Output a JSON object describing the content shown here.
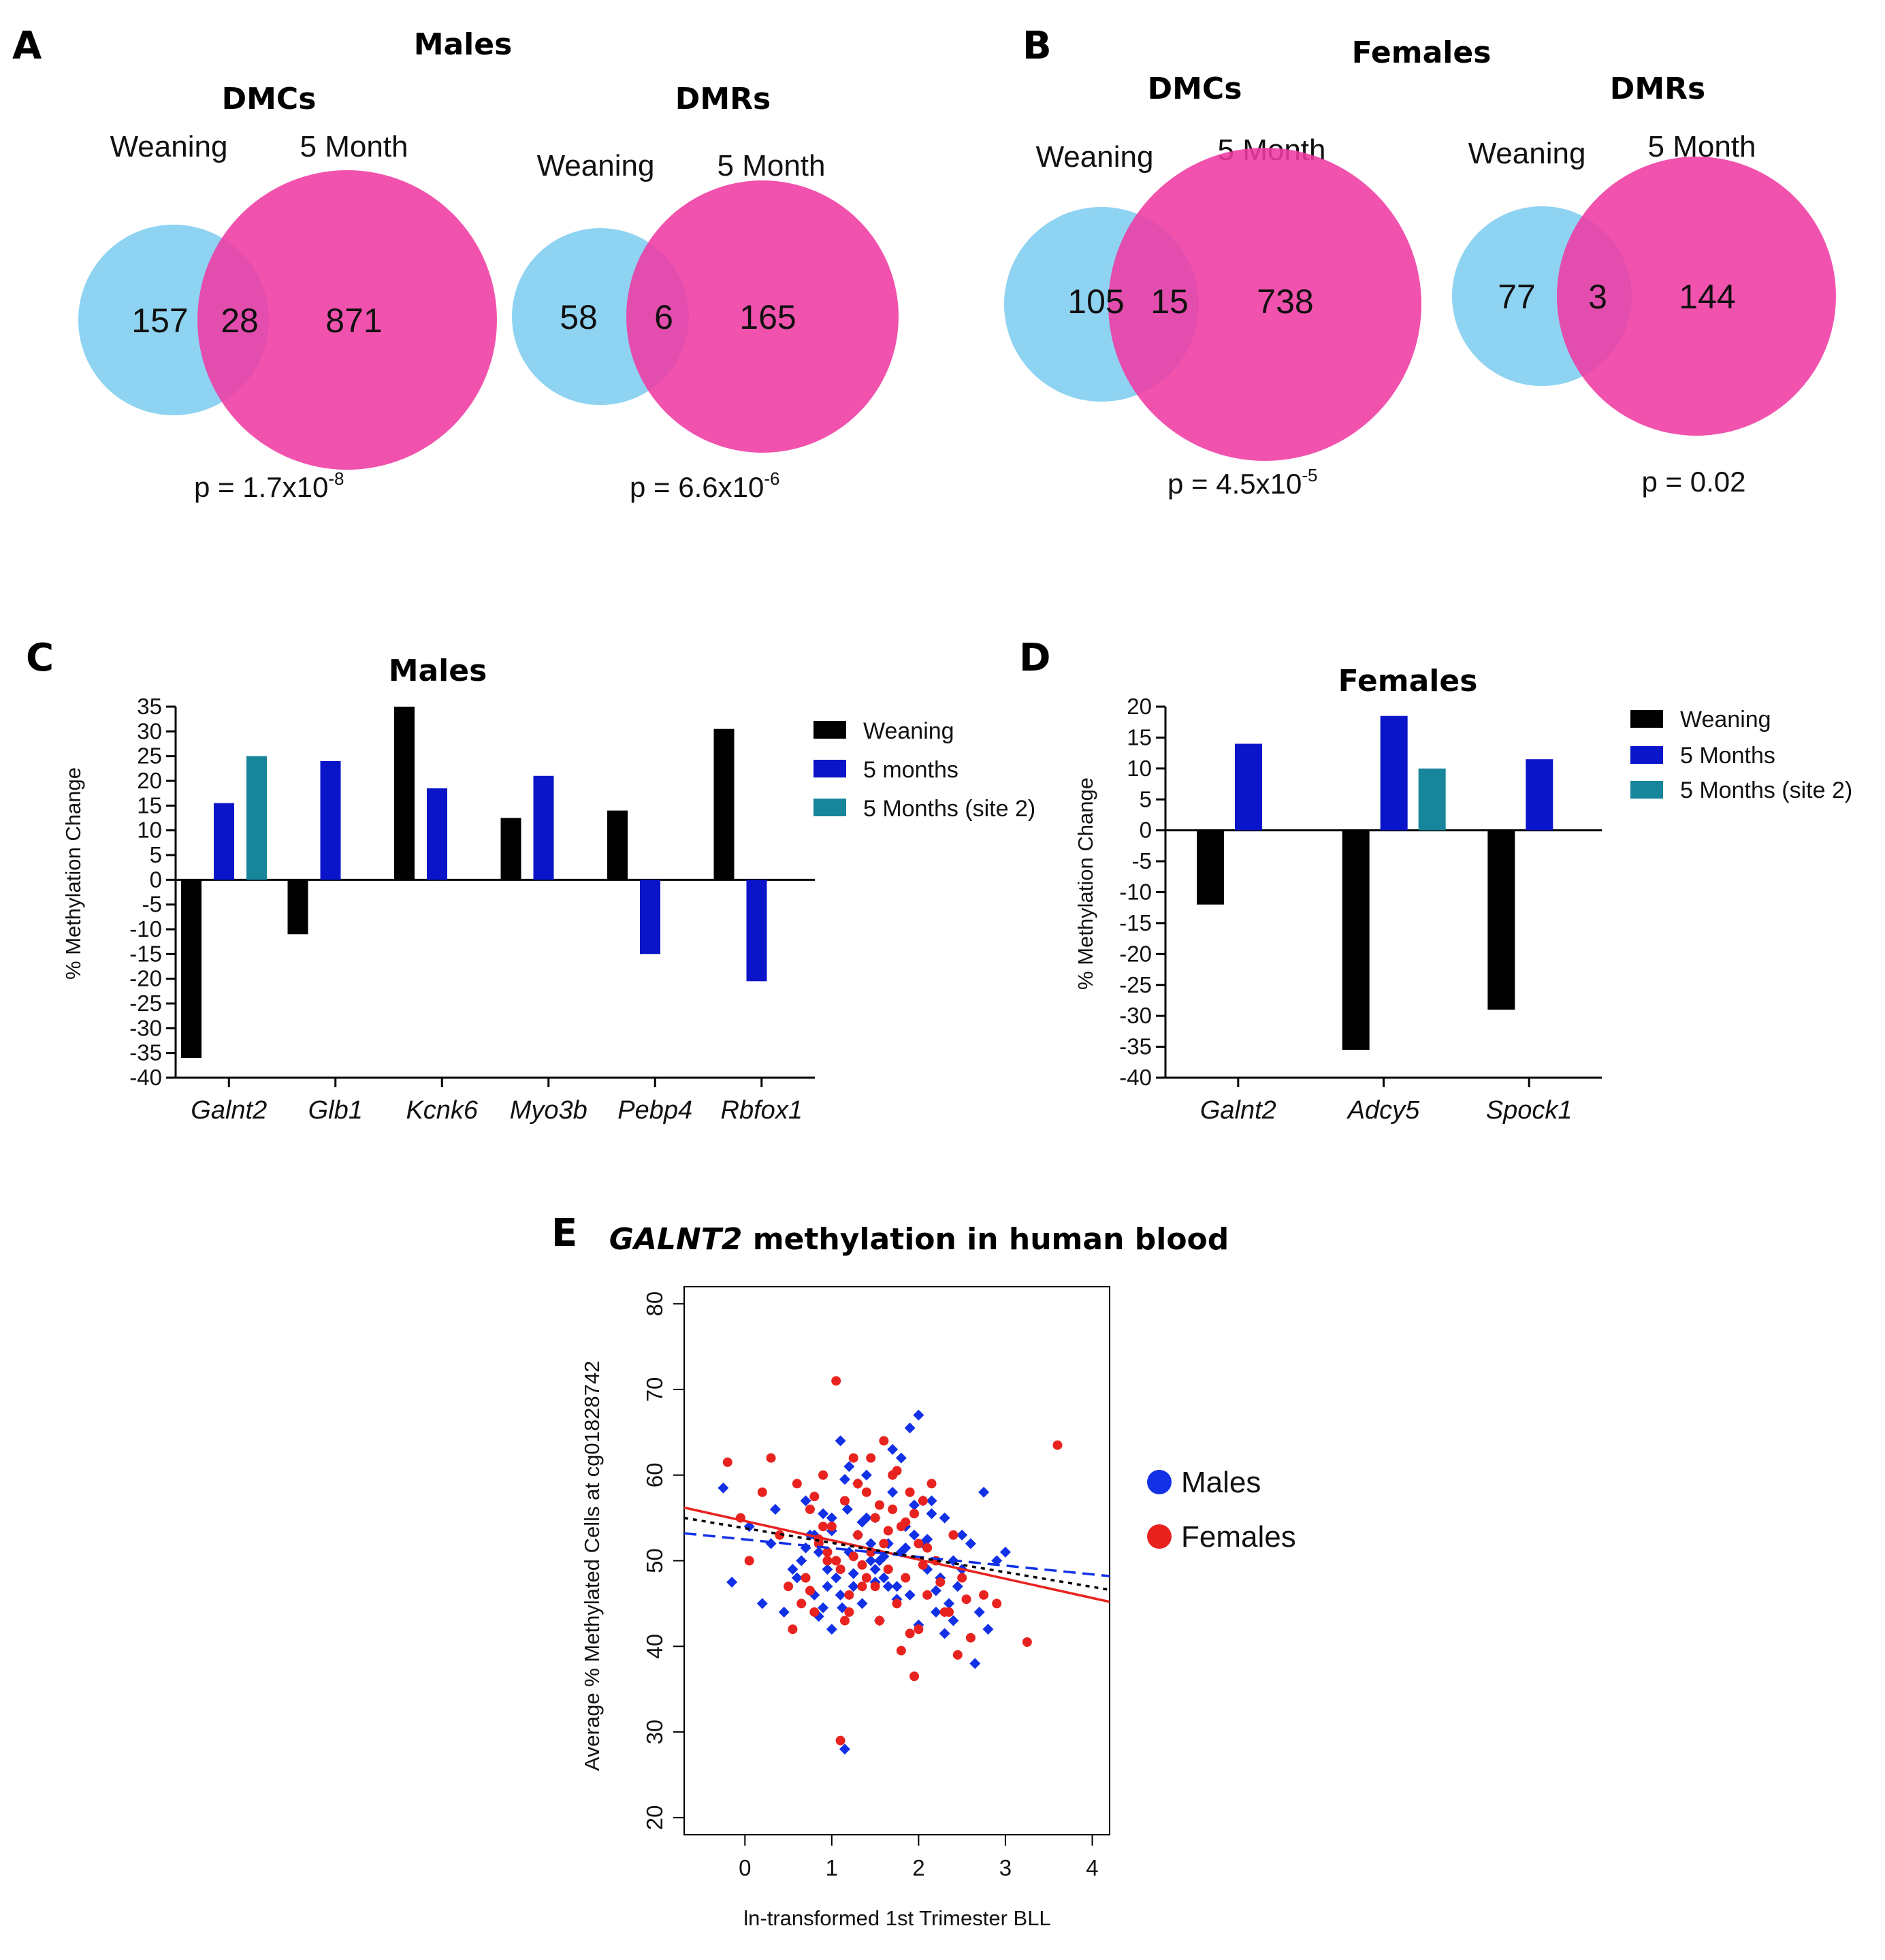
{
  "colors": {
    "venn_weaning": "#8fd3f2",
    "venn_month": "#ef3aa3",
    "weaning": "#000000",
    "months": "#0a14c8",
    "site2": "#17859a",
    "males_pt": "#1230e6",
    "females_pt": "#e8231f",
    "fit_all": "#000000"
  },
  "panelA": {
    "letter": "A",
    "title": "Males",
    "dmc": {
      "title": "DMCs",
      "left_label": "Weaning",
      "right_label": "5 Month",
      "left_only": "157",
      "overlap": "28",
      "right_only": "871",
      "p_prefix": "p = 1.7x10",
      "p_exp": "-8"
    },
    "dmr": {
      "title": "DMRs",
      "left_label": "Weaning",
      "right_label": "5 Month",
      "left_only": "58",
      "overlap": "6",
      "right_only": "165",
      "p_prefix": "p = 6.6x10",
      "p_exp": "-6"
    }
  },
  "panelB": {
    "letter": "B",
    "title": "Females",
    "dmc": {
      "title": "DMCs",
      "left_label": "Weaning",
      "right_label": "5 Month",
      "left_only": "105",
      "overlap": "15",
      "right_only": "738",
      "p_prefix": "p = 4.5x10",
      "p_exp": "-5"
    },
    "dmr": {
      "title": "DMRs",
      "left_label": "Weaning",
      "right_label": "5 Month",
      "left_only": "77",
      "overlap": "3",
      "right_only": "144",
      "p_prefix": "p = 0.02",
      "p_exp": ""
    }
  },
  "chart_data": [
    {
      "panel": "C",
      "type": "bar",
      "title": "Males",
      "ylabel": "% Methylation Change",
      "ylim": [
        -40,
        35
      ],
      "yticks": [
        35,
        30,
        25,
        20,
        15,
        10,
        5,
        0,
        -5,
        -10,
        -15,
        -20,
        -25,
        -30,
        -35,
        -40
      ],
      "categories": [
        "Galnt2",
        "Glb1",
        "Kcnk6",
        "Myo3b",
        "Pebp4",
        "Rbfox1"
      ],
      "series": [
        {
          "name": "Weaning",
          "values": [
            -36,
            -11,
            35,
            12.5,
            14,
            30.5
          ]
        },
        {
          "name": "5 months",
          "values": [
            15.5,
            24,
            18.5,
            21,
            -15,
            -20.5
          ]
        },
        {
          "name": "5 Months (site 2)",
          "values": [
            25,
            null,
            null,
            null,
            null,
            null
          ]
        }
      ]
    },
    {
      "panel": "D",
      "type": "bar",
      "title": "Females",
      "ylabel": "% Methylation Change",
      "ylim": [
        -40,
        20
      ],
      "yticks": [
        20,
        15,
        10,
        5,
        0,
        -5,
        -10,
        -15,
        -20,
        -25,
        -30,
        -35,
        -40
      ],
      "categories": [
        "Galnt2",
        "Adcy5",
        "Spock1"
      ],
      "series": [
        {
          "name": "Weaning",
          "values": [
            -12,
            -35.5,
            -29
          ]
        },
        {
          "name": "5 Months",
          "values": [
            14,
            18.5,
            11.5
          ]
        },
        {
          "name": "5 Months (site 2)",
          "values": [
            null,
            10,
            null
          ]
        }
      ]
    },
    {
      "panel": "E",
      "type": "scatter",
      "title_italic": "GALNT2",
      "title_rest": " methylation in human blood",
      "xlabel": "ln-transformed 1st Trimester BLL",
      "ylabel": "Average % Methylated Cells at cg01828742",
      "xlim": [
        -0.7,
        4.2
      ],
      "ylim": [
        18,
        82
      ],
      "xticks": [
        "0",
        "1",
        "2",
        "3",
        "4"
      ],
      "yticks": [
        "20",
        "30",
        "40",
        "50",
        "60",
        "70",
        "80"
      ],
      "legend": [
        "Males",
        "Females"
      ],
      "series": [
        {
          "name": "Males",
          "marker": "diamond",
          "x": [
            -0.25,
            -0.15,
            0.05,
            0.2,
            0.3,
            0.35,
            0.45,
            0.55,
            0.6,
            0.65,
            0.7,
            0.75,
            0.8,
            0.85,
            0.9,
            0.95,
            1.0,
            1.05,
            1.1,
            1.12,
            1.15,
            1.18,
            1.2,
            1.25,
            1.3,
            1.35,
            1.4,
            1.45,
            1.5,
            1.55,
            1.6,
            1.65,
            1.7,
            1.75,
            1.8,
            1.85,
            1.9,
            1.95,
            2.0,
            2.05,
            2.1,
            2.15,
            2.2,
            2.25,
            2.3,
            2.35,
            2.4,
            2.45,
            2.5,
            2.6,
            2.7,
            2.75,
            2.8,
            2.9,
            3.0,
            0.9,
            1.0,
            1.3,
            1.5,
            1.7,
            2.05,
            1.6,
            1.2,
            0.7,
            2.5,
            2.2,
            1.9,
            1.4,
            1.0,
            0.8,
            1.8,
            2.3,
            1.1,
            1.5,
            1.75,
            2.1,
            2.65,
            0.95,
            1.35,
            1.85,
            2.4,
            1.25,
            1.45,
            2.0,
            1.15,
            1.65,
            2.15,
            0.85,
            1.55,
            1.95
          ],
          "y": [
            58.5,
            47.5,
            54,
            45,
            52,
            56,
            44,
            49,
            48,
            50,
            57,
            53,
            46,
            51,
            44.5,
            49,
            55,
            48,
            64,
            44.5,
            28,
            56,
            51,
            47,
            53,
            45,
            60,
            50,
            55,
            43,
            48,
            52,
            58,
            47,
            62,
            54,
            46,
            53,
            67,
            52,
            49,
            57,
            44,
            48,
            55,
            45,
            50,
            47,
            53,
            52,
            44,
            58,
            42,
            50,
            51,
            55.5,
            53.5,
            59,
            47.5,
            63,
            57,
            50.5,
            61,
            51.5,
            49,
            46.5,
            65.5,
            55,
            42,
            53,
            51,
            41.5,
            46,
            49,
            45.5,
            52.5,
            38,
            47,
            54.5,
            51.5,
            43,
            48.5,
            52,
            42.5,
            59.5,
            47,
            55.5,
            43.5,
            50,
            56.5
          ]
        },
        {
          "name": "Females",
          "marker": "circle",
          "x": [
            -0.2,
            -0.05,
            0.05,
            0.2,
            0.3,
            0.4,
            0.5,
            0.55,
            0.6,
            0.7,
            0.75,
            0.8,
            0.85,
            0.9,
            0.95,
            1.0,
            1.05,
            1.1,
            1.15,
            1.2,
            1.25,
            1.3,
            1.35,
            1.4,
            1.45,
            1.5,
            1.55,
            1.6,
            1.65,
            1.7,
            1.75,
            1.8,
            1.85,
            1.9,
            1.95,
            2.0,
            2.05,
            2.1,
            2.15,
            2.2,
            2.3,
            2.4,
            2.5,
            2.6,
            2.75,
            2.9,
            3.25,
            3.6,
            1.05,
            1.1,
            0.65,
            0.85,
            1.45,
            1.85,
            1.25,
            2.25,
            1.55,
            1.35,
            1.75,
            2.0,
            0.9,
            1.15,
            1.6,
            1.95,
            2.45,
            1.4,
            0.75,
            1.7,
            2.1,
            1.5,
            2.35,
            1.3,
            0.95,
            1.65,
            1.8,
            2.05,
            1.2,
            2.55,
            0.8,
            1.9
          ],
          "y": [
            61.5,
            55,
            50,
            58,
            62,
            53,
            47,
            42,
            59,
            48,
            56,
            44,
            52,
            60,
            50,
            54,
            71,
            49,
            57,
            46,
            62,
            53,
            47,
            58,
            51,
            55,
            43,
            64,
            49,
            60,
            45,
            54,
            48,
            58,
            36.5,
            52,
            57,
            46,
            59,
            50,
            44,
            53,
            48,
            41,
            46,
            45,
            40.5,
            63.5,
            50,
            29,
            45,
            52.5,
            62,
            54.5,
            50.5,
            47.5,
            56.5,
            49.5,
            60.5,
            42,
            54,
            43,
            52,
            55.5,
            39,
            48,
            46.5,
            56,
            51.5,
            47,
            44,
            59,
            51,
            53.5,
            39.5,
            49.5,
            44,
            45.5,
            57.5,
            41.5
          ]
        }
      ],
      "fits": [
        {
          "name": "Females",
          "style": "solid",
          "x": [
            -0.7,
            4.2
          ],
          "y": [
            56.2,
            45.2
          ]
        },
        {
          "name": "Males",
          "style": "dashed",
          "x": [
            -0.7,
            4.2
          ],
          "y": [
            53.2,
            48.2
          ]
        },
        {
          "name": "All",
          "style": "dotted",
          "x": [
            -0.7,
            4.2
          ],
          "y": [
            55.0,
            46.6
          ]
        }
      ]
    }
  ]
}
